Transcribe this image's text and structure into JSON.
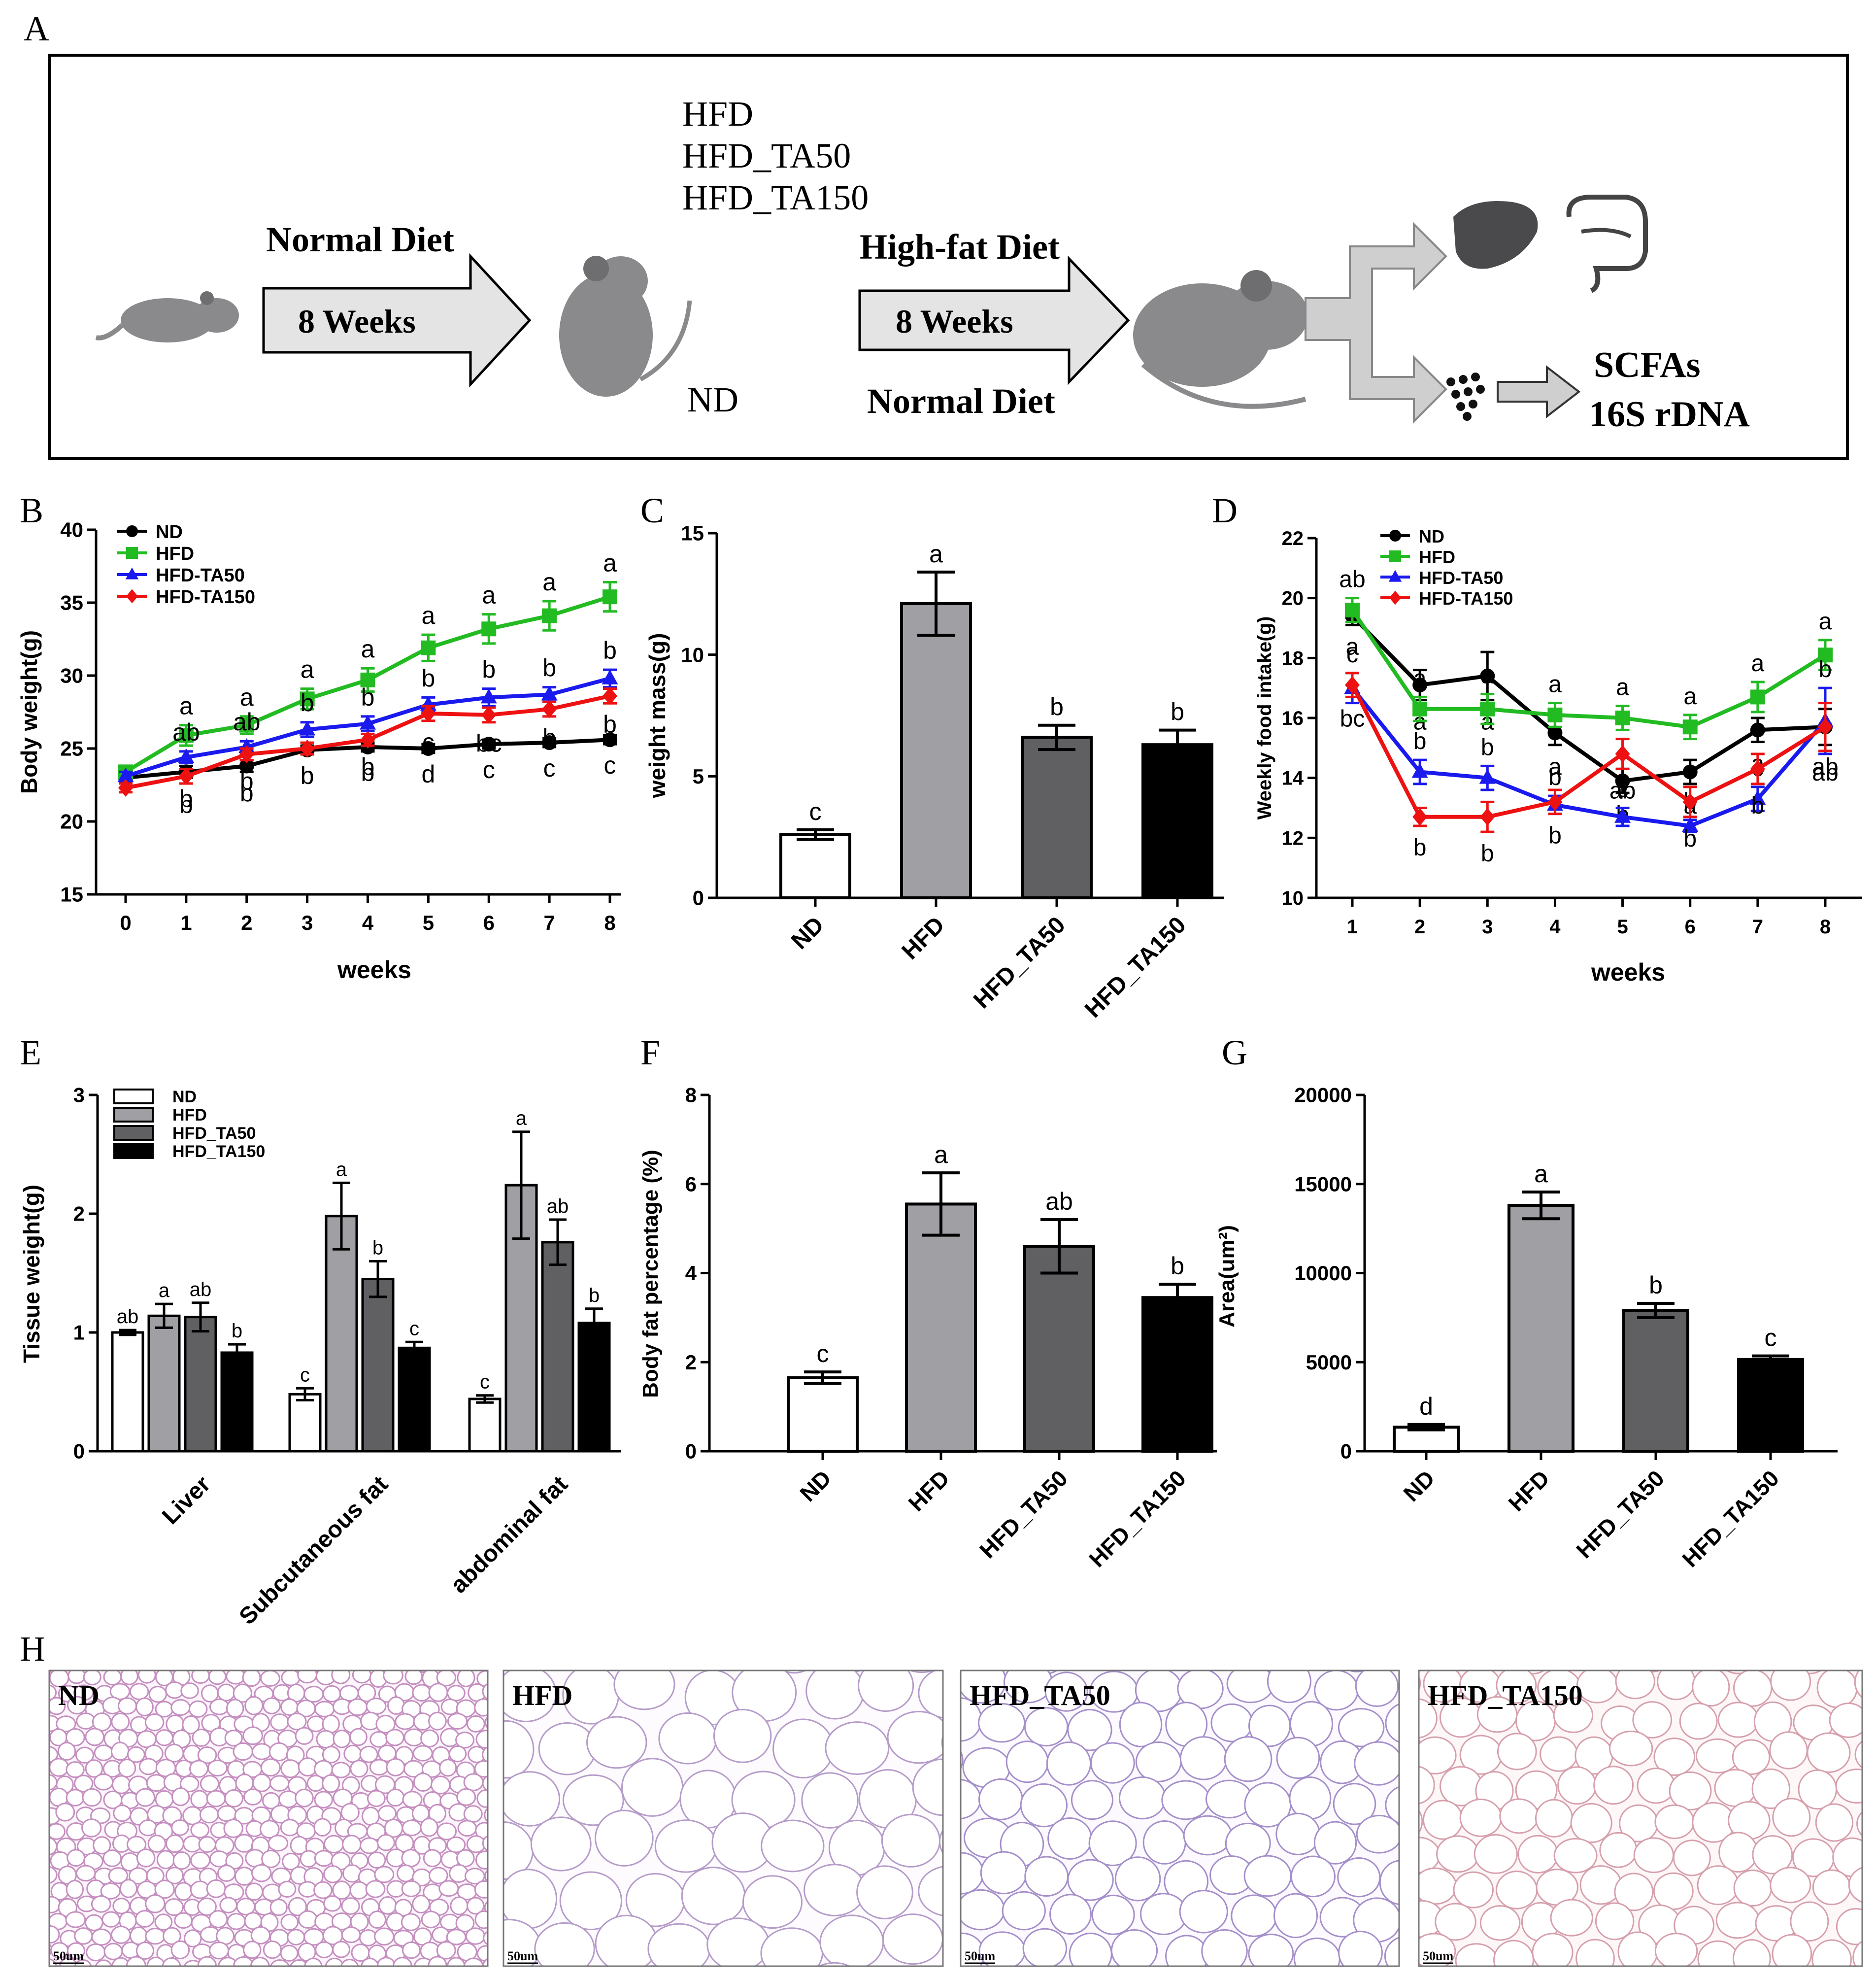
{
  "colors": {
    "ND": "#000000",
    "HFD": "#22bb22",
    "TA50": "#1a1aee",
    "TA150": "#ee1111",
    "bar_ND": "#ffffff",
    "bar_HFD": "#a0a0a4",
    "bar_TA50": "#606062",
    "bar_TA150": "#000000"
  },
  "panel_letters": [
    "A",
    "B",
    "C",
    "D",
    "E",
    "F",
    "G",
    "H"
  ],
  "schematic": {
    "normal_diet_top": "Normal Diet",
    "weeks1": "8 Weeks",
    "groups": [
      "HFD",
      "HFD_TA50",
      "HFD_TA150"
    ],
    "high_fat_diet": "High-fat Diet",
    "weeks2": "8 Weeks",
    "nd_label": "ND",
    "normal_diet_bottom": "Normal Diet",
    "scfas": "SCFAs",
    "rdna": "16S rDNA"
  },
  "histology": {
    "labels": [
      "ND",
      "HFD",
      "HFD_TA50",
      "HFD_TA150"
    ],
    "scale": "50um"
  },
  "chart_data": [
    {
      "id": "B",
      "type": "line",
      "xlabel": "weeks",
      "ylabel": "Body weight(g)",
      "x": [
        0,
        1,
        2,
        3,
        4,
        5,
        6,
        7,
        8
      ],
      "ylim": [
        15,
        40
      ],
      "yticks": [
        15,
        20,
        25,
        30,
        35,
        40
      ],
      "legend": [
        "ND",
        "HFD",
        "HFD-TA50",
        "HFD-TA150"
      ],
      "series": [
        {
          "name": "ND",
          "color": "#000000",
          "marker": "circle",
          "values": [
            23.0,
            23.4,
            23.8,
            24.9,
            25.1,
            25.0,
            25.3,
            25.4,
            25.6
          ],
          "err": [
            0.3,
            0.4,
            0.4,
            0.3,
            0.3,
            0.3,
            0.3,
            0.3,
            0.3
          ],
          "labels": [
            "",
            "b",
            "b",
            "b",
            "b",
            "d",
            "c",
            "c",
            "c"
          ]
        },
        {
          "name": "HFD",
          "color": "#22bb22",
          "marker": "square",
          "values": [
            23.4,
            25.9,
            26.6,
            28.4,
            29.7,
            31.9,
            33.2,
            34.1,
            35.4
          ],
          "err": [
            0.4,
            0.7,
            0.6,
            0.7,
            0.8,
            0.9,
            1.0,
            1.0,
            1.0
          ],
          "labels": [
            "",
            "a",
            "a",
            "a",
            "a",
            "a",
            "a",
            "a",
            "a"
          ]
        },
        {
          "name": "HFD-TA50",
          "color": "#1a1aee",
          "marker": "triangle",
          "values": [
            23.1,
            24.4,
            25.1,
            26.3,
            26.7,
            28.0,
            28.5,
            28.7,
            29.8
          ],
          "err": [
            0.3,
            0.4,
            0.4,
            0.5,
            0.5,
            0.5,
            0.6,
            0.5,
            0.6
          ],
          "labels": [
            "",
            "ab",
            "ab",
            "b",
            "b",
            "b",
            "b",
            "b",
            "b"
          ]
        },
        {
          "name": "HFD-TA150",
          "color": "#ee1111",
          "marker": "diamond",
          "values": [
            22.3,
            23.1,
            24.6,
            25.0,
            25.6,
            27.4,
            27.3,
            27.7,
            28.6
          ],
          "err": [
            0.3,
            0.5,
            0.4,
            0.4,
            0.4,
            0.5,
            0.5,
            0.5,
            0.5
          ],
          "labels": [
            "",
            "b",
            "b",
            "b",
            "b",
            "c",
            "bc",
            "b",
            "b"
          ]
        }
      ]
    },
    {
      "id": "C",
      "type": "bar",
      "ylabel": "weight mass(g)",
      "categories": [
        "ND",
        "HFD",
        "HFD_TA50",
        "HFD_TA150"
      ],
      "values": [
        2.6,
        12.1,
        6.6,
        6.3
      ],
      "err": [
        0.2,
        1.3,
        0.5,
        0.6
      ],
      "labels": [
        "c",
        "a",
        "b",
        "b"
      ],
      "ylim": [
        0,
        15
      ],
      "yticks": [
        0,
        5,
        10,
        15
      ]
    },
    {
      "id": "D",
      "type": "line",
      "xlabel": "weeks",
      "ylabel": "Weekly food intake(g)",
      "x": [
        1,
        2,
        3,
        4,
        5,
        6,
        7,
        8
      ],
      "ylim": [
        10,
        22
      ],
      "yticks": [
        10,
        12,
        14,
        16,
        18,
        20,
        22
      ],
      "legend": [
        "ND",
        "HFD",
        "HFD-TA50",
        "HFD-TA150"
      ],
      "series": [
        {
          "name": "ND",
          "color": "#000000",
          "marker": "circle",
          "values": [
            19.4,
            17.1,
            17.4,
            15.5,
            13.9,
            14.2,
            15.6,
            15.7
          ],
          "err": [
            0.3,
            0.5,
            0.8,
            0.4,
            0.4,
            0.4,
            0.4,
            0.6
          ],
          "labels": [
            "a",
            "a",
            "a",
            "a",
            "b",
            "a",
            "a",
            "ab"
          ]
        },
        {
          "name": "HFD",
          "color": "#22bb22",
          "marker": "square",
          "values": [
            19.6,
            16.3,
            16.3,
            16.1,
            16.0,
            15.7,
            16.7,
            18.1
          ],
          "err": [
            0.4,
            0.4,
            0.5,
            0.4,
            0.4,
            0.4,
            0.5,
            0.5
          ],
          "labels": [
            "ab",
            "a",
            "a",
            "a",
            "a",
            "a",
            "a",
            "a"
          ]
        },
        {
          "name": "HFD-TA50",
          "color": "#1a1aee",
          "marker": "triangle",
          "values": [
            17.0,
            14.2,
            14.0,
            13.1,
            12.7,
            12.4,
            13.3,
            15.9
          ],
          "err": [
            0.5,
            0.4,
            0.4,
            0.3,
            0.3,
            0.2,
            0.4,
            1.1
          ],
          "labels": [
            "c",
            "b",
            "b",
            "b",
            "c",
            "b",
            "c",
            "b"
          ]
        },
        {
          "name": "HFD-TA150",
          "color": "#ee1111",
          "marker": "diamond",
          "values": [
            17.1,
            12.7,
            12.7,
            13.2,
            14.8,
            13.2,
            14.3,
            15.7
          ],
          "err": [
            0.4,
            0.3,
            0.5,
            0.4,
            0.5,
            0.5,
            0.5,
            0.8
          ],
          "labels": [
            "bc",
            "b",
            "b",
            "b",
            "ab",
            "b",
            "b",
            "ab"
          ]
        }
      ]
    },
    {
      "id": "E",
      "type": "bar",
      "ylabel": "Tissue weight(g)",
      "categories": [
        "Liver",
        "Subcutaneous fat",
        "abdominal fat"
      ],
      "legend": [
        "ND",
        "HFD",
        "HFD_TA50",
        "HFD_TA150"
      ],
      "ylim": [
        0,
        3
      ],
      "yticks": [
        0,
        1,
        2,
        3
      ],
      "series": [
        {
          "name": "ND",
          "values": [
            1.0,
            0.48,
            0.44
          ],
          "err": [
            0.02,
            0.05,
            0.03
          ],
          "labels": [
            "ab",
            "c",
            "c"
          ]
        },
        {
          "name": "HFD",
          "values": [
            1.14,
            1.98,
            2.24
          ],
          "err": [
            0.1,
            0.28,
            0.45
          ],
          "labels": [
            "a",
            "a",
            "a"
          ]
        },
        {
          "name": "HFD_TA50",
          "values": [
            1.13,
            1.45,
            1.76
          ],
          "err": [
            0.12,
            0.15,
            0.19
          ],
          "labels": [
            "ab",
            "b",
            "ab"
          ]
        },
        {
          "name": "HFD_TA150",
          "values": [
            0.83,
            0.87,
            1.08
          ],
          "err": [
            0.07,
            0.05,
            0.12
          ],
          "labels": [
            "b",
            "c",
            "b"
          ]
        }
      ]
    },
    {
      "id": "F",
      "type": "bar",
      "ylabel": "Body fat percentage (%)",
      "categories": [
        "ND",
        "HFD",
        "HFD_TA50",
        "HFD_TA150"
      ],
      "values": [
        1.65,
        5.55,
        4.6,
        3.45
      ],
      "err": [
        0.13,
        0.7,
        0.6,
        0.3
      ],
      "labels": [
        "c",
        "a",
        "ab",
        "b"
      ],
      "ylim": [
        0,
        8
      ],
      "yticks": [
        0,
        2,
        4,
        6,
        8
      ]
    },
    {
      "id": "G",
      "type": "bar",
      "ylabel": "Area(um²)",
      "categories": [
        "ND",
        "HFD",
        "HFD_TA50",
        "HFD_TA150"
      ],
      "values": [
        1350,
        13800,
        7900,
        5150
      ],
      "err": [
        150,
        750,
        400,
        200
      ],
      "labels": [
        "d",
        "a",
        "b",
        "c"
      ],
      "ylim": [
        0,
        20000
      ],
      "yticks": [
        0,
        5000,
        10000,
        15000,
        20000
      ]
    }
  ]
}
